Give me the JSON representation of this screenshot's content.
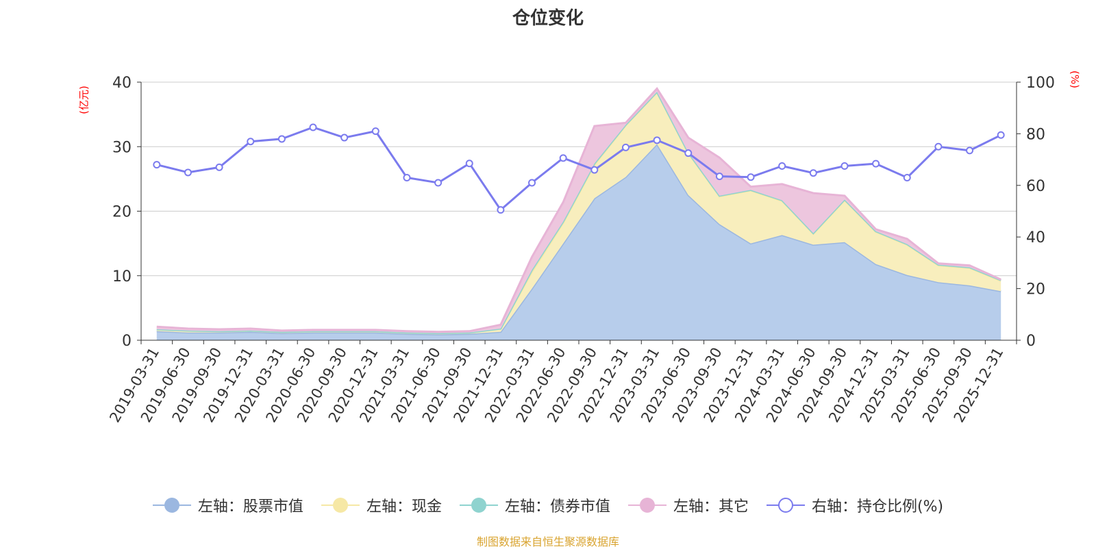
{
  "chart_data": {
    "type": "area",
    "title": "仓位变化",
    "source_note": "制图数据来自恒生聚源数据库",
    "left_axis": {
      "unit": "(亿元)",
      "ylim": [
        0,
        40
      ],
      "ticks": [
        "0",
        "10",
        "20",
        "30",
        "40"
      ]
    },
    "right_axis": {
      "unit": "(%)",
      "ylim": [
        0,
        100
      ],
      "ticks": [
        "0",
        "20",
        "40",
        "60",
        "80",
        "100"
      ]
    },
    "categories": [
      "2019-03-31",
      "2019-06-30",
      "2019-09-30",
      "2019-12-31",
      "2020-03-31",
      "2020-06-30",
      "2020-09-30",
      "2020-12-31",
      "2021-03-31",
      "2021-06-30",
      "2021-09-30",
      "2021-12-31",
      "2022-03-31",
      "2022-06-30",
      "2022-09-30",
      "2022-12-31",
      "2023-03-31",
      "2023-06-30",
      "2023-09-30",
      "2023-12-31",
      "2024-03-31",
      "2024-06-30",
      "2024-09-30",
      "2024-12-31",
      "2025-03-31",
      "2025-06-30",
      "2025-09-30",
      "2025-12-31"
    ],
    "series": [
      {
        "name": "左轴：股票市值",
        "axis": "left",
        "color": "#9bb7e0",
        "fill": "#b7cdeb",
        "values": [
          1.4,
          1.2,
          1.2,
          1.3,
          1.1,
          1.2,
          1.2,
          1.2,
          1.0,
          0.9,
          1.0,
          1.3,
          8.0,
          15.0,
          22.0,
          25.3,
          30.4,
          22.5,
          18.0,
          15.0,
          16.3,
          14.8,
          15.2,
          11.8,
          10.1,
          9.0,
          8.5,
          7.6
        ]
      },
      {
        "name": "左轴：现金",
        "axis": "left",
        "color": "#f6e8a5",
        "fill": "#f8eebd",
        "values": [
          0.3,
          0.3,
          0.2,
          0.2,
          0.2,
          0.2,
          0.2,
          0.2,
          0.2,
          0.2,
          0.2,
          0.5,
          2.6,
          3.2,
          5.2,
          8.0,
          8.0,
          6.5,
          4.3,
          8.2,
          5.3,
          1.7,
          6.5,
          5.0,
          4.7,
          2.6,
          2.7,
          1.6
        ]
      },
      {
        "name": "左轴：债券市值",
        "axis": "left",
        "color": "#8fd3cf",
        "fill": "#b7e3dc",
        "values": [
          0,
          0,
          0,
          0,
          0,
          0,
          0,
          0,
          0,
          0,
          0,
          0,
          0.3,
          0.2,
          0.2,
          0.1,
          0.1,
          0.1,
          0.1,
          0.1,
          0.1,
          0.1,
          0.1,
          0.1,
          0.1,
          0.1,
          0.1,
          0.1
        ]
      },
      {
        "name": "左轴：其它",
        "axis": "left",
        "color": "#e7b4d6",
        "fill": "#edc6de",
        "values": [
          0.4,
          0.3,
          0.3,
          0.3,
          0.2,
          0.2,
          0.2,
          0.2,
          0.2,
          0.2,
          0.2,
          0.6,
          2.0,
          3.0,
          5.8,
          0.3,
          0.5,
          2.3,
          5.9,
          0.5,
          2.5,
          6.2,
          0.6,
          0.3,
          0.8,
          0.2,
          0.3,
          0.1
        ]
      },
      {
        "name": "右轴：持仓比例(%)",
        "axis": "right",
        "color": "#7b7bee",
        "values": [
          68,
          65,
          67,
          77,
          78,
          82.5,
          78.5,
          81,
          63,
          61,
          68.5,
          50.5,
          61,
          70.6,
          66,
          74.7,
          77.5,
          72.5,
          63.5,
          63.2,
          67.5,
          64.8,
          67.5,
          68.4,
          63,
          75,
          73.5,
          79.5
        ]
      }
    ],
    "legend_position": "bottom-center",
    "grid": true,
    "colors": {
      "axis_label": "#ff0000",
      "source_text": "#d9a430",
      "grid": "#cccccc",
      "axis": "#333333"
    }
  }
}
